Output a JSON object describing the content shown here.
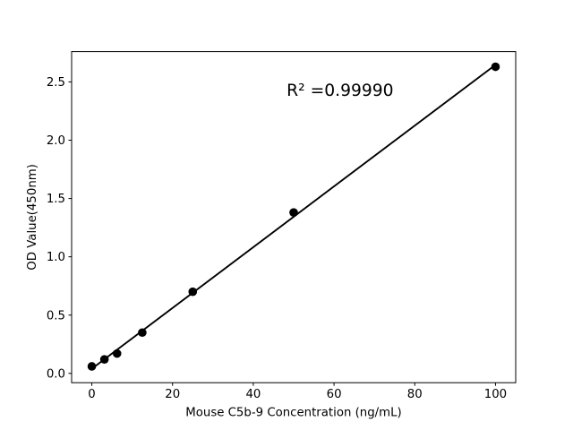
{
  "chart_data": {
    "type": "scatter",
    "title": "",
    "xlabel": "Mouse C5b-9 Concentration (ng/mL)",
    "ylabel": "OD Value(450nm)",
    "x": [
      0,
      3.125,
      6.25,
      12.5,
      25,
      50,
      100
    ],
    "y": [
      0.06,
      0.12,
      0.17,
      0.35,
      0.7,
      1.38,
      2.63
    ],
    "trendline": "linear",
    "annotation": {
      "text": "R² =0.99990",
      "x": 61.5,
      "y": 2.43
    },
    "xlim": [
      -5,
      105
    ],
    "ylim": [
      -0.08,
      2.76
    ],
    "xticks": [
      0,
      20,
      40,
      60,
      80,
      100
    ],
    "xtick_labels": [
      "0",
      "20",
      "40",
      "60",
      "80",
      "100"
    ],
    "yticks": [
      0,
      0.5,
      1.0,
      1.5,
      2.0,
      2.5
    ],
    "ytick_labels": [
      "0.0",
      "0.5",
      "1.0",
      "1.5",
      "2.0",
      "2.5"
    ],
    "grid": false,
    "legend": null,
    "marker_color": "#000000",
    "line_color": "#000000",
    "spine_color": "#000000",
    "background": "#ffffff"
  }
}
